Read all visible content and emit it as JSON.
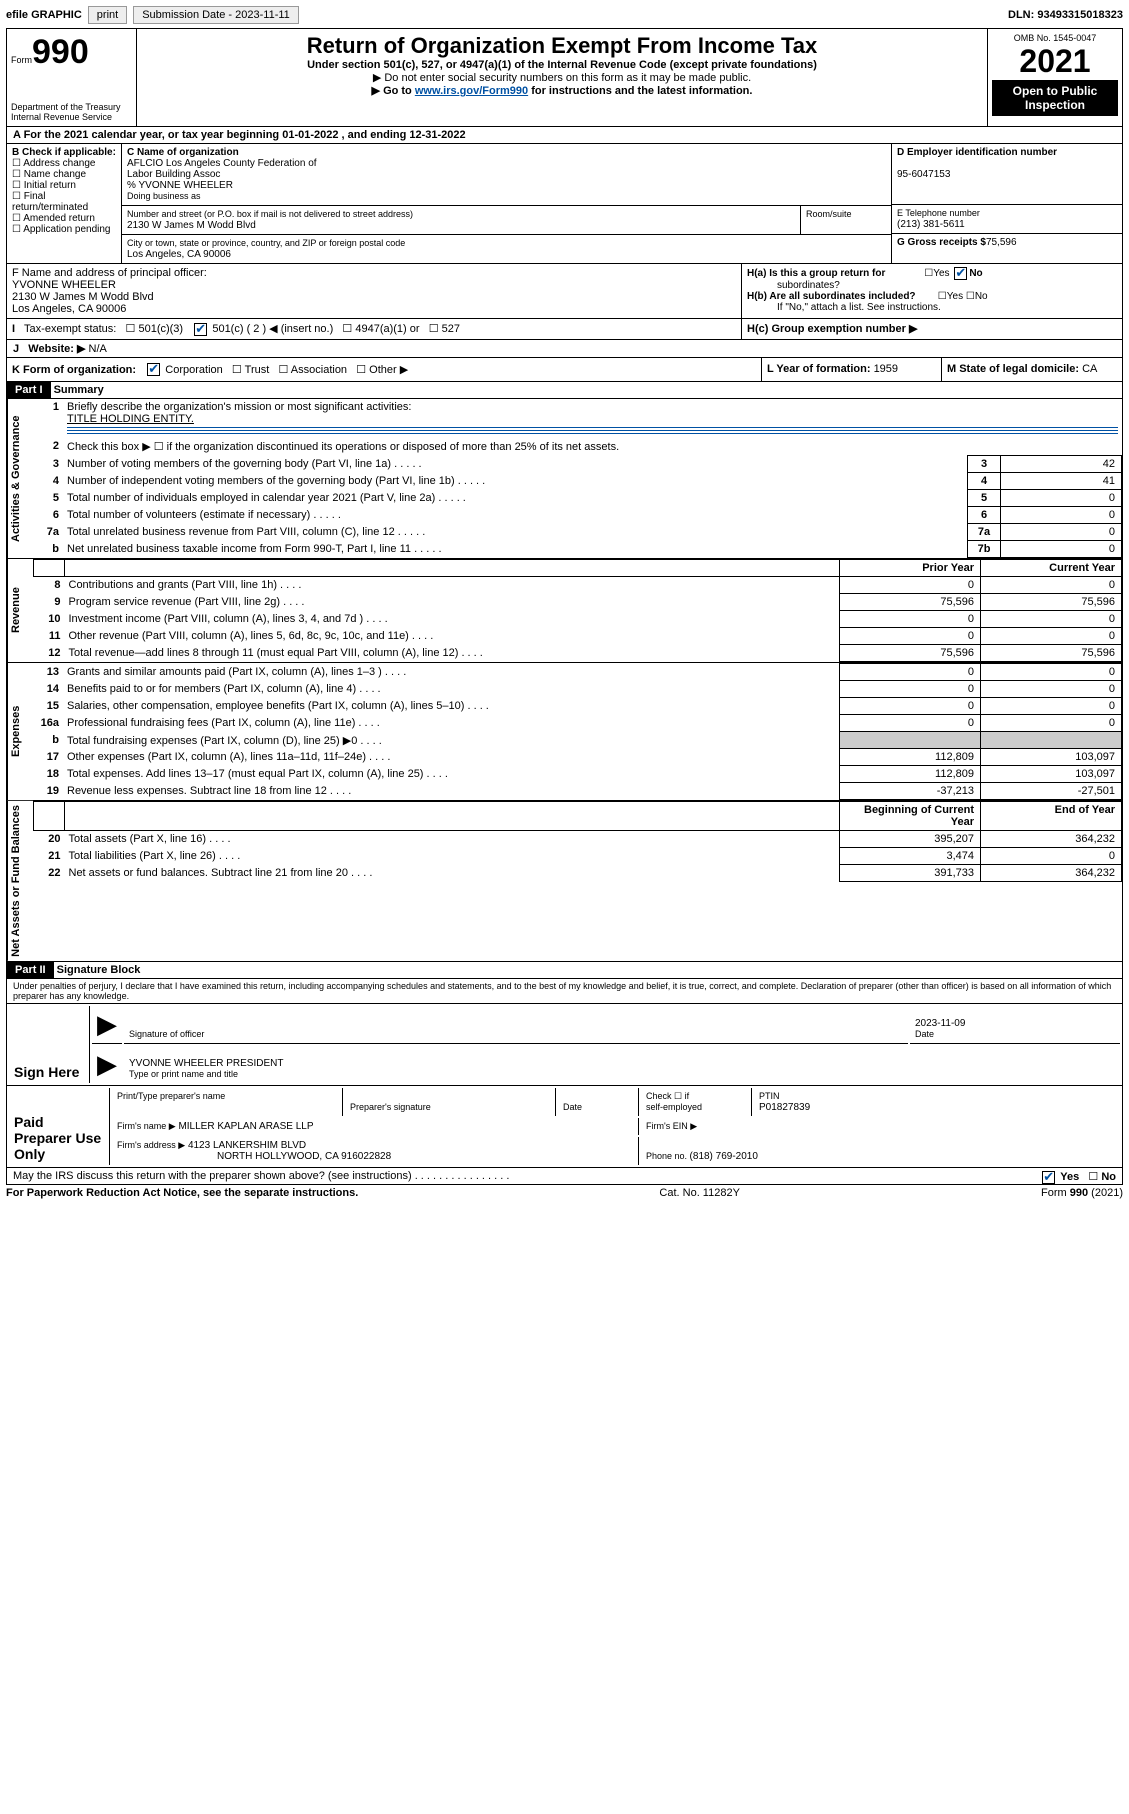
{
  "topbar": {
    "efile": "efile GRAPHIC",
    "print": "print",
    "sub_lbl": "Submission Date - ",
    "sub_date": "2023-11-11",
    "dln_lbl": "DLN: ",
    "dln": "93493315018323"
  },
  "header": {
    "form": "Form",
    "n990": "990",
    "dept": "Department of the Treasury",
    "irs": "Internal Revenue Service",
    "title": "Return of Organization Exempt From Income Tax",
    "sub1": "Under section 501(c), 527, or 4947(a)(1) of the Internal Revenue Code (except private foundations)",
    "sub2": "▶ Do not enter social security numbers on this form as it may be made public.",
    "sub3a": "▶ Go to ",
    "sub3link": "www.irs.gov/Form990",
    "sub3b": " for instructions and the latest information.",
    "omb": "OMB No. 1545-0047",
    "year": "2021",
    "open": "Open to Public",
    "insp": "Inspection"
  },
  "periodA": {
    "pre": "A For the 2021 calendar year, or tax year beginning ",
    "beg": "01-01-2022",
    "mid": " , and ending ",
    "end": "12-31-2022"
  },
  "boxB": {
    "hdr": "B Check if applicable:",
    "addr": "Address change",
    "name": "Name change",
    "init": "Initial return",
    "final": "Final return/terminated",
    "amend": "Amended return",
    "app": "Application pending"
  },
  "boxC": {
    "lbl": "C Name of organization",
    "org1": "AFLCIO Los Angeles County Federation of",
    "org2": "Labor Building Assoc",
    "care": "% YVONNE WHEELER",
    "dba": "Doing business as",
    "street_lbl": "Number and street (or P.O. box if mail is not delivered to street address)",
    "room": "Room/suite",
    "street": "2130 W James M Wodd Blvd",
    "city_lbl": "City or town, state or province, country, and ZIP or foreign postal code",
    "city": "Los Angeles, CA  90006"
  },
  "boxD": {
    "lbl": "D Employer identification number",
    "ein": "95-6047153"
  },
  "boxE": {
    "lbl": "E Telephone number",
    "tel": "(213) 381-5611"
  },
  "boxG": {
    "lbl": "G Gross receipts $",
    "amt": "75,596"
  },
  "boxF": {
    "lbl": "F Name and address of principal officer:",
    "n": "YVONNE WHEELER",
    "a1": "2130 W James M Wodd Blvd",
    "a2": "Los Angeles, CA  90006"
  },
  "boxH": {
    "a": "H(a)  Is this a group return for",
    "a2": "subordinates?",
    "b": "H(b)  Are all subordinates included?",
    "bnote": "If \"No,\" attach a list. See instructions.",
    "c": "H(c)  Group exemption number ▶",
    "yes": "Yes",
    "no": "No"
  },
  "boxI": {
    "lbl": "Tax-exempt status:",
    "c3": "501(c)(3)",
    "c": "501(c) ( 2 ) ◀ (insert no.)",
    "a1": "4947(a)(1) or",
    "c527": "527"
  },
  "boxJ": {
    "lbl": "Website: ▶",
    "val": "N/A"
  },
  "boxK": {
    "lbl": "K Form of organization:",
    "corp": "Corporation",
    "trust": "Trust",
    "assoc": "Association",
    "other": "Other ▶"
  },
  "boxL": {
    "lbl": "L Year of formation: ",
    "val": "1959"
  },
  "boxM": {
    "lbl": "M State of legal domicile: ",
    "val": "CA"
  },
  "part1": {
    "bar": "Part I",
    "title": "Summary"
  },
  "sidelabels": {
    "act": "Activities & Governance",
    "rev": "Revenue",
    "exp": "Expenses",
    "net": "Net Assets or Fund Balances"
  },
  "l1": {
    "t": "Briefly describe the organization's mission or most significant activities:",
    "v": "TITLE HOLDING ENTITY."
  },
  "l2": {
    "t": "Check this box ▶ ☐  if the organization discontinued its operations or disposed of more than 25% of its net assets."
  },
  "lines_gov": [
    {
      "n": "3",
      "t": "Number of voting members of the governing body (Part VI, line 1a)",
      "b": "3",
      "v": "42"
    },
    {
      "n": "4",
      "t": "Number of independent voting members of the governing body (Part VI, line 1b)",
      "b": "4",
      "v": "41"
    },
    {
      "n": "5",
      "t": "Total number of individuals employed in calendar year 2021 (Part V, line 2a)",
      "b": "5",
      "v": "0"
    },
    {
      "n": "6",
      "t": "Total number of volunteers (estimate if necessary)",
      "b": "6",
      "v": "0"
    },
    {
      "n": "7a",
      "t": "Total unrelated business revenue from Part VIII, column (C), line 12",
      "b": "7a",
      "v": "0"
    },
    {
      "n": "b",
      "t": "Net unrelated business taxable income from Form 990-T, Part I, line 11",
      "b": "7b",
      "v": "0"
    }
  ],
  "cols": {
    "prior": "Prior Year",
    "curr": "Current Year",
    "beg": "Beginning of Current Year",
    "end": "End of Year"
  },
  "lines_rev": [
    {
      "n": "8",
      "t": "Contributions and grants (Part VIII, line 1h)",
      "p": "0",
      "c": "0"
    },
    {
      "n": "9",
      "t": "Program service revenue (Part VIII, line 2g)",
      "p": "75,596",
      "c": "75,596"
    },
    {
      "n": "10",
      "t": "Investment income (Part VIII, column (A), lines 3, 4, and 7d )",
      "p": "0",
      "c": "0"
    },
    {
      "n": "11",
      "t": "Other revenue (Part VIII, column (A), lines 5, 6d, 8c, 9c, 10c, and 11e)",
      "p": "0",
      "c": "0"
    },
    {
      "n": "12",
      "t": "Total revenue—add lines 8 through 11 (must equal Part VIII, column (A), line 12)",
      "p": "75,596",
      "c": "75,596"
    }
  ],
  "lines_exp": [
    {
      "n": "13",
      "t": "Grants and similar amounts paid (Part IX, column (A), lines 1–3 )",
      "p": "0",
      "c": "0"
    },
    {
      "n": "14",
      "t": "Benefits paid to or for members (Part IX, column (A), line 4)",
      "p": "0",
      "c": "0"
    },
    {
      "n": "15",
      "t": "Salaries, other compensation, employee benefits (Part IX, column (A), lines 5–10)",
      "p": "0",
      "c": "0"
    },
    {
      "n": "16a",
      "t": "Professional fundraising fees (Part IX, column (A), line 11e)",
      "p": "0",
      "c": "0"
    },
    {
      "n": "b",
      "t": "Total fundraising expenses (Part IX, column (D), line 25) ▶0",
      "p": "",
      "c": "",
      "grey": true
    },
    {
      "n": "17",
      "t": "Other expenses (Part IX, column (A), lines 11a–11d, 11f–24e)",
      "p": "112,809",
      "c": "103,097"
    },
    {
      "n": "18",
      "t": "Total expenses. Add lines 13–17 (must equal Part IX, column (A), line 25)",
      "p": "112,809",
      "c": "103,097"
    },
    {
      "n": "19",
      "t": "Revenue less expenses. Subtract line 18 from line 12",
      "p": "-37,213",
      "c": "-27,501"
    }
  ],
  "lines_net": [
    {
      "n": "20",
      "t": "Total assets (Part X, line 16)",
      "p": "395,207",
      "c": "364,232"
    },
    {
      "n": "21",
      "t": "Total liabilities (Part X, line 26)",
      "p": "3,474",
      "c": "0"
    },
    {
      "n": "22",
      "t": "Net assets or fund balances. Subtract line 21 from line 20",
      "p": "391,733",
      "c": "364,232"
    }
  ],
  "part2": {
    "bar": "Part II",
    "title": "Signature Block",
    "decl": "Under penalties of perjury, I declare that I have examined this return, including accompanying schedules and statements, and to the best of my knowledge and belief, it is true, correct, and complete. Declaration of preparer (other than officer) is based on all information of which preparer has any knowledge."
  },
  "sign": {
    "here": "Sign Here",
    "sig_lbl": "Signature of officer",
    "date_lbl": "Date",
    "date": "2023-11-09",
    "name": "YVONNE WHEELER  PRESIDENT",
    "name_lbl": "Type or print name and title"
  },
  "paid": {
    "here": "Paid Preparer Use Only",
    "c1": "Print/Type preparer's name",
    "c2": "Preparer's signature",
    "c3": "Date",
    "c4a": "Check ☐ if",
    "c4b": "self-employed",
    "c5": "PTIN",
    "ptin": "P01827839",
    "firm_lbl": "Firm's name   ▶",
    "firm": "MILLER KAPLAN ARASE LLP",
    "ein_lbl": "Firm's EIN ▶",
    "addr_lbl": "Firm's address ▶",
    "addr1": "4123 LANKERSHIM BLVD",
    "addr2": "NORTH HOLLYWOOD, CA  916022828",
    "ph_lbl": "Phone no. ",
    "ph": "(818) 769-2010"
  },
  "discuss": {
    "t": "May the IRS discuss this return with the preparer shown above? (see instructions)",
    "yes": "Yes",
    "no": "No"
  },
  "footer": {
    "l": "For Paperwork Reduction Act Notice, see the separate instructions.",
    "c": "Cat. No. 11282Y",
    "r1": "Form ",
    "r2": "990",
    "r3": " (2021)"
  }
}
